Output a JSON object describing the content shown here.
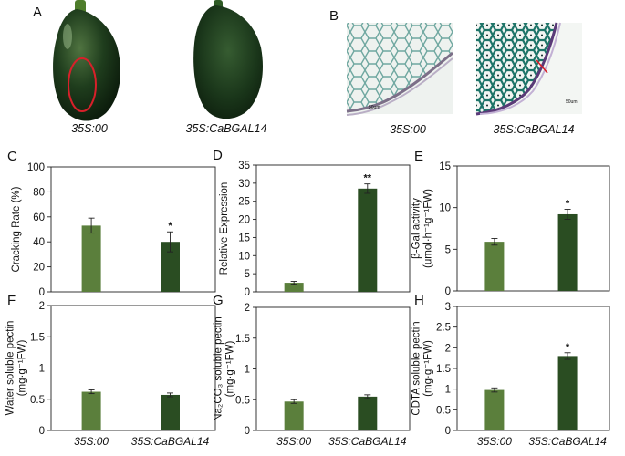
{
  "photos": {
    "panel_a": {
      "letter": "A",
      "captions": [
        "35S:00",
        "35S:CaBGAL14"
      ]
    },
    "panel_b": {
      "letter": "B",
      "captions": [
        "35S:00",
        "35S:CaBGAL14"
      ],
      "scale_label": "50um"
    }
  },
  "colors": {
    "control": "#5b7f3c",
    "overexpression": "#2a4d22",
    "circle": "#d8202a",
    "arrow": "#d8202a"
  },
  "chart_data": [
    {
      "id": "C",
      "letter": "C",
      "type": "bar",
      "categories": [
        "35S:00",
        "35S:CaBGAL14"
      ],
      "values": [
        53,
        40
      ],
      "errors": [
        6,
        8
      ],
      "significance": [
        "",
        "*"
      ],
      "ylabel": "Cracking Rate (%)",
      "ylim": [
        0,
        100
      ],
      "yticks": [
        "0",
        "20",
        "40",
        "60",
        "80",
        "100"
      ],
      "show_xticklabels": false
    },
    {
      "id": "D",
      "letter": "D",
      "type": "bar",
      "categories": [
        "35S:00",
        "35S:CaBGAL14"
      ],
      "values": [
        2.5,
        28.5
      ],
      "errors": [
        0.4,
        1.3
      ],
      "significance": [
        "",
        "**"
      ],
      "ylabel": "Relative Expression",
      "ylim": [
        0,
        35
      ],
      "yticks": [
        "0",
        "5",
        "10",
        "15",
        "20",
        "25",
        "30",
        "35"
      ],
      "show_xticklabels": false
    },
    {
      "id": "E",
      "letter": "E",
      "type": "bar",
      "categories": [
        "35S:00",
        "35S:CaBGAL14"
      ],
      "values": [
        5.9,
        9.2
      ],
      "errors": [
        0.4,
        0.6
      ],
      "significance": [
        "",
        "*"
      ],
      "ylabel_lines": [
        "β-Gal activity",
        "(umol·h⁻¹g⁻¹FW)"
      ],
      "ylim": [
        0,
        15
      ],
      "yticks": [
        "0",
        "5",
        "10",
        "15"
      ],
      "show_xticklabels": false
    },
    {
      "id": "F",
      "letter": "F",
      "type": "bar",
      "categories": [
        "35S:00",
        "35S:CaBGAL14"
      ],
      "values": [
        0.62,
        0.57
      ],
      "errors": [
        0.03,
        0.03
      ],
      "significance": [
        "",
        ""
      ],
      "ylabel_lines": [
        "Water soluble pectin",
        "(mg·g⁻¹FW)"
      ],
      "ylim": [
        0,
        2
      ],
      "yticks": [
        "0",
        "0.5",
        "1",
        "1.5",
        "2"
      ],
      "show_xticklabels": true
    },
    {
      "id": "G",
      "letter": "G",
      "type": "bar",
      "categories": [
        "35S:00",
        "35S:CaBGAL14"
      ],
      "values": [
        0.47,
        0.55
      ],
      "errors": [
        0.03,
        0.03
      ],
      "significance": [
        "",
        ""
      ],
      "ylabel_lines": [
        "Na₂CO₃ soluble pectin",
        "(mg·g⁻¹FW)"
      ],
      "ylim": [
        0,
        2
      ],
      "yticks": [
        "0",
        "0.5",
        "1",
        "1.5",
        "2"
      ],
      "show_xticklabels": true
    },
    {
      "id": "H",
      "letter": "H",
      "type": "bar",
      "categories": [
        "35S:00",
        "35S:CaBGAL14"
      ],
      "values": [
        0.98,
        1.8
      ],
      "errors": [
        0.05,
        0.08
      ],
      "significance": [
        "",
        "*"
      ],
      "ylabel_lines": [
        "CDTA soluble pectin",
        "(mg·g⁻¹FW)"
      ],
      "ylim": [
        0,
        3
      ],
      "yticks": [
        "0",
        "0.5",
        "1",
        "1.5",
        "2",
        "2.5",
        "3"
      ],
      "show_xticklabels": true
    }
  ]
}
